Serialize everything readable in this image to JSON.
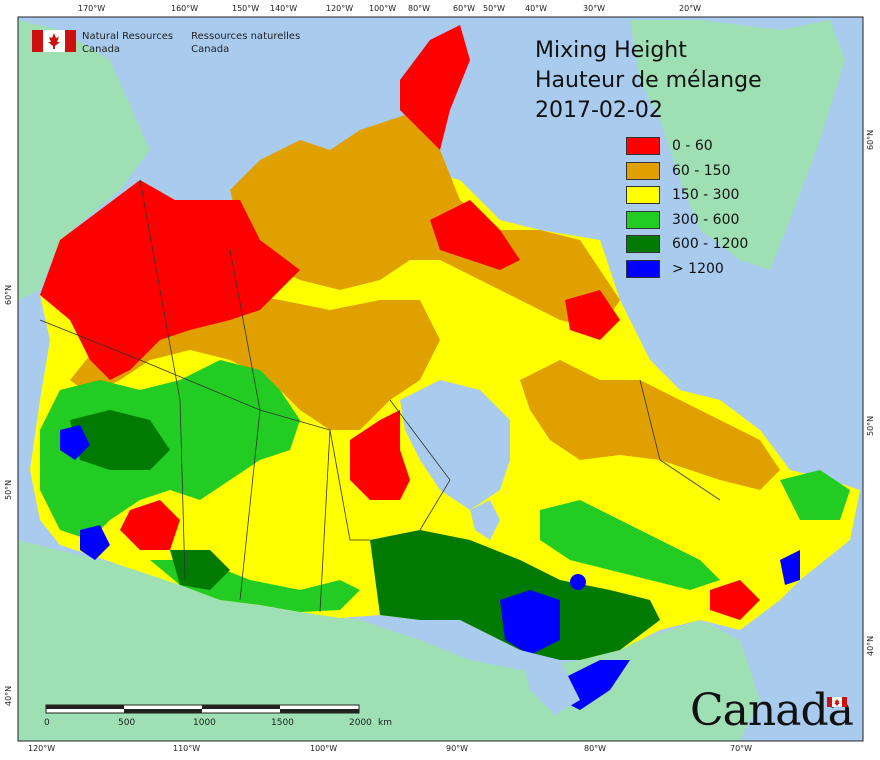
{
  "title": {
    "line1": "Mixing Height",
    "line2": "Hauteur de mélange",
    "date": "2017-02-02"
  },
  "agency": {
    "en_line1": "Natural Resources",
    "en_line2": "Canada",
    "fr_line1": "Ressources naturelles",
    "fr_line2": "Canada"
  },
  "wordmark": "Canada",
  "legend": [
    {
      "label": "0 - 60",
      "color": "#ff0000"
    },
    {
      "label": "60 - 150",
      "color": "#e0a000"
    },
    {
      "label": "150 - 300",
      "color": "#ffff00"
    },
    {
      "label": "300 - 600",
      "color": "#22cc22"
    },
    {
      "label": "600 - 1200",
      "color": "#007a00"
    },
    {
      "label": "> 1200",
      "color": "#0000ff"
    }
  ],
  "top_ticks": [
    "170°W",
    "160°W",
    "150°W",
    "140°W",
    "120°W",
    "100°W",
    "80°W",
    "60°W",
    "50°W",
    "40°W",
    "30°W",
    "20°W"
  ],
  "bottom_ticks": [
    "120°W",
    "110°W",
    "100°W",
    "90°W",
    "80°W",
    "70°W"
  ],
  "left_ticks": [
    "60°N",
    "50°N",
    "40°N"
  ],
  "right_ticks": [
    "60°N",
    "50°N",
    "40°N"
  ],
  "scale_bar": {
    "labels": [
      "0",
      "500",
      "1000",
      "1500",
      "2000"
    ],
    "unit": "km"
  },
  "colors": {
    "ocean": "#a9cbee",
    "land_outside": "#9ee0b4",
    "boundary": "#333333"
  }
}
